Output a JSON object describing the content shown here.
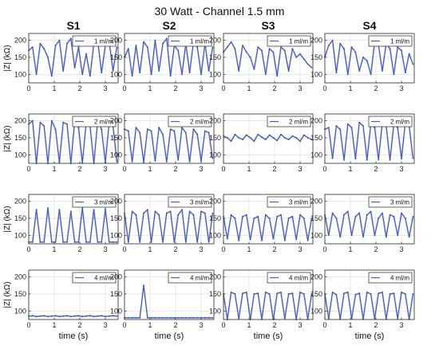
{
  "title": "30 Watt - Channel 1.5 mm",
  "column_titles": [
    "S1",
    "S2",
    "S3",
    "S4"
  ],
  "ylabel": "|Z| (kΩ)",
  "xlabel": "time (s)",
  "colors": {
    "trace": "#3a4fb8",
    "trace_light": "#7c8cd6",
    "grid": "#dcdcdc",
    "legend_line": "#4a5cc8"
  },
  "chart_data": {
    "type": "line",
    "rows": 4,
    "cols": 4,
    "grid": true,
    "legend_placement": "top-right",
    "xlim": [
      0,
      3.5
    ],
    "ylim": [
      75,
      220
    ],
    "xticks": [
      0,
      1,
      2,
      3
    ],
    "yticks": [
      100,
      150,
      200
    ],
    "legend_labels": [
      "1 ml/m",
      "2 ml/m",
      "3 ml/m",
      "4 ml/m"
    ],
    "panels": [
      {
        "row": 0,
        "col": 0,
        "legend": "1 ml/m",
        "x": [
          0,
          0.15,
          0.3,
          0.45,
          0.6,
          0.75,
          0.9,
          1.05,
          1.2,
          1.35,
          1.5,
          1.65,
          1.8,
          1.95,
          2.1,
          2.25,
          2.4,
          2.55,
          2.7,
          2.85,
          3.0,
          3.15,
          3.3,
          3.45
        ],
        "y": [
          170,
          180,
          100,
          190,
          175,
          150,
          95,
          185,
          200,
          110,
          190,
          205,
          120,
          180,
          100,
          160,
          95,
          190,
          200,
          105,
          185,
          195,
          110,
          180
        ]
      },
      {
        "row": 0,
        "col": 1,
        "legend": "1 ml/m",
        "x": [
          0,
          0.15,
          0.3,
          0.45,
          0.6,
          0.75,
          0.9,
          1.05,
          1.2,
          1.35,
          1.5,
          1.65,
          1.8,
          1.95,
          2.1,
          2.25,
          2.4,
          2.55,
          2.7,
          2.85,
          3.0,
          3.15,
          3.3,
          3.45
        ],
        "y": [
          150,
          175,
          95,
          185,
          105,
          195,
          180,
          100,
          200,
          110,
          190,
          205,
          95,
          185,
          170,
          100,
          190,
          105,
          195,
          180,
          100,
          190,
          110,
          180
        ]
      },
      {
        "row": 0,
        "col": 2,
        "legend": "1 ml/m",
        "x": [
          0,
          0.15,
          0.3,
          0.45,
          0.6,
          0.75,
          0.9,
          1.05,
          1.2,
          1.35,
          1.5,
          1.65,
          1.8,
          1.95,
          2.1,
          2.25,
          2.4,
          2.55,
          2.7,
          2.85,
          3.0,
          3.15,
          3.3,
          3.45
        ],
        "y": [
          165,
          180,
          195,
          175,
          110,
          185,
          165,
          150,
          115,
          180,
          170,
          100,
          175,
          165,
          95,
          180,
          170,
          110,
          175,
          150,
          160,
          145,
          130,
          120
        ]
      },
      {
        "row": 0,
        "col": 3,
        "legend": "1 ml/m",
        "x": [
          0,
          0.15,
          0.3,
          0.45,
          0.6,
          0.75,
          0.9,
          1.05,
          1.2,
          1.35,
          1.5,
          1.65,
          1.8,
          1.95,
          2.1,
          2.25,
          2.4,
          2.55,
          2.7,
          2.85,
          3.0,
          3.15,
          3.3,
          3.45
        ],
        "y": [
          150,
          185,
          200,
          105,
          190,
          175,
          100,
          180,
          165,
          110,
          150,
          140,
          100,
          195,
          185,
          110,
          190,
          175,
          100,
          180,
          170,
          105,
          160,
          130
        ]
      },
      {
        "row": 1,
        "col": 0,
        "legend": "2 ml/m",
        "x": [
          0,
          0.15,
          0.3,
          0.45,
          0.6,
          0.75,
          0.9,
          1.05,
          1.2,
          1.35,
          1.5,
          1.65,
          1.8,
          1.95,
          2.1,
          2.25,
          2.4,
          2.55,
          2.7,
          2.85,
          3.0,
          3.15,
          3.3,
          3.45
        ],
        "y": [
          190,
          200,
          75,
          195,
          185,
          75,
          200,
          175,
          78,
          195,
          190,
          75,
          200,
          180,
          76,
          195,
          185,
          75,
          200,
          175,
          77,
          195,
          185,
          80
        ]
      },
      {
        "row": 1,
        "col": 1,
        "legend": "2 ml/m",
        "x": [
          0,
          0.15,
          0.3,
          0.45,
          0.6,
          0.75,
          0.9,
          1.05,
          1.2,
          1.35,
          1.5,
          1.65,
          1.8,
          1.95,
          2.1,
          2.25,
          2.4,
          2.55,
          2.7,
          2.85,
          3.0,
          3.15,
          3.3,
          3.45
        ],
        "y": [
          175,
          170,
          80,
          180,
          165,
          78,
          175,
          170,
          82,
          180,
          160,
          80,
          175,
          170,
          85,
          180,
          165,
          80,
          175,
          160,
          82,
          170,
          165,
          90
        ]
      },
      {
        "row": 1,
        "col": 2,
        "legend": "2 ml/m",
        "x": [
          0,
          0.15,
          0.3,
          0.45,
          0.6,
          0.75,
          0.9,
          1.05,
          1.2,
          1.35,
          1.5,
          1.65,
          1.8,
          1.95,
          2.1,
          2.25,
          2.4,
          2.55,
          2.7,
          2.85,
          3.0,
          3.15,
          3.3,
          3.45
        ],
        "y": [
          155,
          150,
          140,
          160,
          150,
          145,
          158,
          150,
          140,
          160,
          152,
          145,
          158,
          150,
          142,
          160,
          150,
          145,
          155,
          150,
          140,
          158,
          150,
          145
        ]
      },
      {
        "row": 1,
        "col": 3,
        "legend": "2 ml/m",
        "x": [
          0,
          0.15,
          0.3,
          0.45,
          0.6,
          0.75,
          0.9,
          1.05,
          1.2,
          1.35,
          1.5,
          1.65,
          1.8,
          1.95,
          2.1,
          2.25,
          2.4,
          2.55,
          2.7,
          2.85,
          3.0,
          3.15,
          3.3,
          3.45
        ],
        "y": [
          175,
          180,
          90,
          185,
          175,
          85,
          190,
          180,
          88,
          195,
          185,
          85,
          190,
          180,
          86,
          195,
          185,
          85,
          190,
          180,
          88,
          195,
          185,
          90
        ]
      },
      {
        "row": 2,
        "col": 0,
        "legend": "3 ml/m",
        "x": [
          0,
          0.15,
          0.3,
          0.45,
          0.6,
          0.75,
          0.9,
          1.05,
          1.2,
          1.35,
          1.5,
          1.65,
          1.8,
          1.95,
          2.1,
          2.25,
          2.4,
          2.55,
          2.7,
          2.85,
          3.0,
          3.15,
          3.3,
          3.45
        ],
        "y": [
          80,
          80,
          175,
          80,
          80,
          180,
          80,
          80,
          175,
          80,
          80,
          170,
          80,
          80,
          180,
          80,
          80,
          175,
          80,
          80,
          178,
          80,
          80,
          80
        ]
      },
      {
        "row": 2,
        "col": 1,
        "legend": "3 ml/m",
        "x": [
          0,
          0.15,
          0.3,
          0.45,
          0.6,
          0.75,
          0.9,
          1.05,
          1.2,
          1.35,
          1.5,
          1.65,
          1.8,
          1.95,
          2.1,
          2.25,
          2.4,
          2.55,
          2.7,
          2.85,
          3.0,
          3.15,
          3.3,
          3.45
        ],
        "y": [
          165,
          80,
          170,
          160,
          80,
          165,
          175,
          80,
          170,
          160,
          80,
          165,
          170,
          80,
          160,
          175,
          80,
          170,
          160,
          80,
          170,
          165,
          80,
          165
        ]
      },
      {
        "row": 2,
        "col": 2,
        "legend": "3 ml/m",
        "x": [
          0,
          0.15,
          0.3,
          0.45,
          0.6,
          0.75,
          0.9,
          1.05,
          1.2,
          1.35,
          1.5,
          1.65,
          1.8,
          1.95,
          2.1,
          2.25,
          2.4,
          2.55,
          2.7,
          2.85,
          3.0,
          3.15,
          3.3,
          3.45
        ],
        "y": [
          155,
          90,
          160,
          150,
          85,
          155,
          160,
          88,
          150,
          155,
          85,
          160,
          150,
          90,
          155,
          160,
          85,
          150,
          155,
          88,
          160,
          150,
          85,
          150
        ]
      },
      {
        "row": 2,
        "col": 3,
        "legend": "3 ml/m",
        "x": [
          0,
          0.15,
          0.3,
          0.45,
          0.6,
          0.75,
          0.9,
          1.05,
          1.2,
          1.35,
          1.5,
          1.65,
          1.8,
          1.95,
          2.1,
          2.25,
          2.4,
          2.55,
          2.7,
          2.85,
          3.0,
          3.15,
          3.3,
          3.45
        ],
        "y": [
          160,
          100,
          165,
          150,
          95,
          160,
          170,
          100,
          155,
          165,
          95,
          160,
          170,
          100,
          150,
          165,
          95,
          160,
          155,
          100,
          165,
          150,
          95,
          155
        ]
      },
      {
        "row": 3,
        "col": 0,
        "legend": "4 ml/m",
        "x": [
          0,
          0.15,
          0.3,
          0.45,
          0.6,
          0.75,
          0.9,
          1.05,
          1.2,
          1.35,
          1.5,
          1.65,
          1.8,
          1.95,
          2.1,
          2.25,
          2.4,
          2.55,
          2.7,
          2.85,
          3.0,
          3.15,
          3.3,
          3.45
        ],
        "y": [
          85,
          86,
          84,
          85,
          86,
          84,
          85,
          86,
          84,
          85,
          86,
          84,
          85,
          86,
          84,
          85,
          86,
          84,
          85,
          86,
          84,
          85,
          86,
          85
        ]
      },
      {
        "row": 3,
        "col": 1,
        "legend": "4 ml/m",
        "x": [
          0,
          0.15,
          0.3,
          0.45,
          0.6,
          0.75,
          0.9,
          1.05,
          1.2,
          1.35,
          1.5,
          1.65,
          1.8,
          1.95,
          2.1,
          2.25,
          2.4,
          2.55,
          2.7,
          2.85,
          3.0,
          3.15,
          3.3,
          3.45
        ],
        "y": [
          80,
          80,
          80,
          80,
          80,
          175,
          80,
          80,
          80,
          80,
          80,
          80,
          80,
          80,
          80,
          80,
          80,
          80,
          80,
          80,
          80,
          80,
          80,
          80
        ]
      },
      {
        "row": 3,
        "col": 2,
        "legend": "4 ml/m",
        "x": [
          0,
          0.15,
          0.3,
          0.45,
          0.6,
          0.75,
          0.9,
          1.05,
          1.2,
          1.35,
          1.5,
          1.65,
          1.8,
          1.95,
          2.1,
          2.25,
          2.4,
          2.55,
          2.7,
          2.85,
          3.0,
          3.15,
          3.3,
          3.45
        ],
        "y": [
          150,
          75,
          155,
          150,
          78,
          152,
          155,
          75,
          150,
          152,
          76,
          155,
          150,
          75,
          152,
          155,
          78,
          150,
          152,
          75,
          155,
          150,
          76,
          150
        ]
      },
      {
        "row": 3,
        "col": 3,
        "legend": "4 ml/m",
        "x": [
          0,
          0.15,
          0.3,
          0.45,
          0.6,
          0.75,
          0.9,
          1.05,
          1.2,
          1.35,
          1.5,
          1.65,
          1.8,
          1.95,
          2.1,
          2.25,
          2.4,
          2.55,
          2.7,
          2.85,
          3.0,
          3.15,
          3.3,
          3.45
        ],
        "y": [
          150,
          78,
          155,
          148,
          76,
          152,
          155,
          78,
          148,
          152,
          76,
          155,
          150,
          78,
          152,
          155,
          76,
          150,
          152,
          78,
          155,
          150,
          76,
          150
        ]
      }
    ]
  }
}
